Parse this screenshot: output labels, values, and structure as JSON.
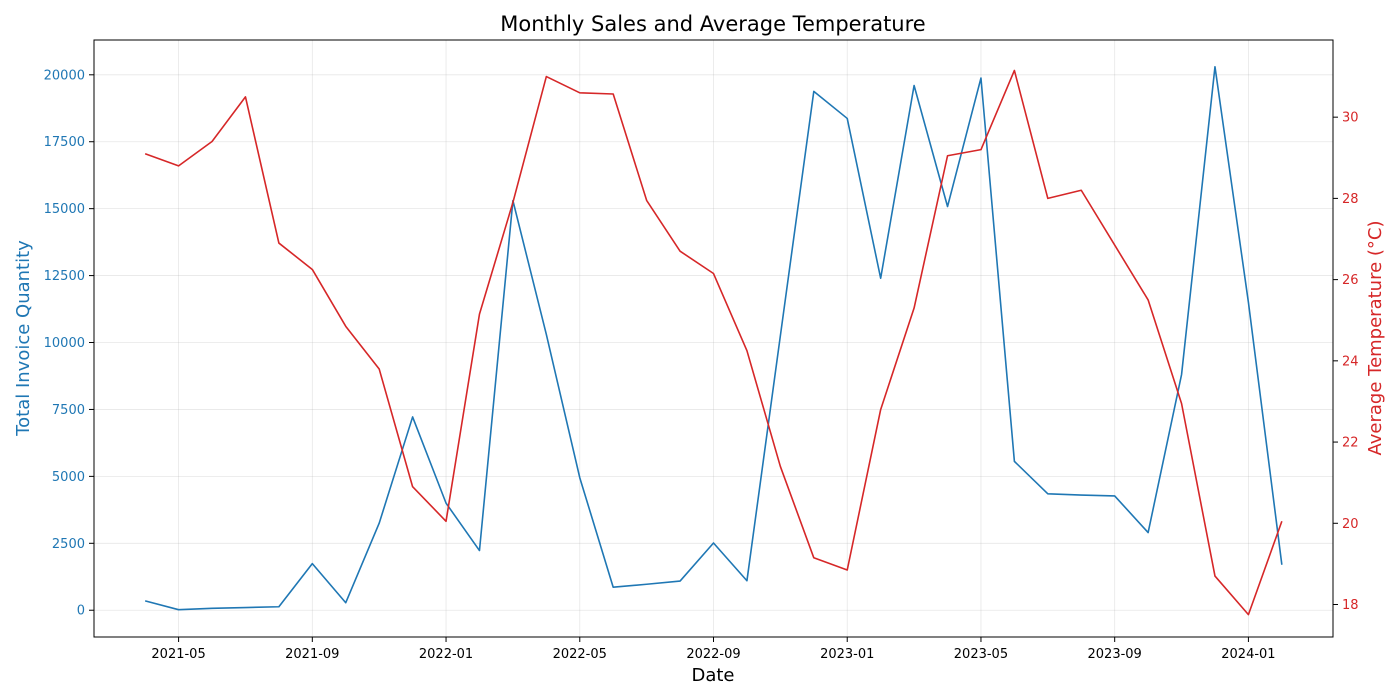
{
  "chart_data": {
    "type": "line",
    "title": "Monthly Sales and Average Temperature",
    "xlabel": "Date",
    "y_left_label": "Total Invoice Quantity",
    "y_right_label": "Average Temperature (°C)",
    "x_ticks": [
      "2021-05",
      "2021-09",
      "2022-01",
      "2022-05",
      "2022-09",
      "2023-01",
      "2023-05",
      "2023-09",
      "2024-01"
    ],
    "y_left_ticks": [
      0,
      2500,
      5000,
      7500,
      10000,
      12500,
      15000,
      17500,
      20000
    ],
    "y_left_tick_labels": [
      "0",
      "2500",
      "5000",
      "7500",
      "10000",
      "12500",
      "15000",
      "17500",
      "20000"
    ],
    "y_right_ticks": [
      18,
      20,
      22,
      24,
      26,
      28,
      30
    ],
    "y_right_tick_labels": [
      "18",
      "20",
      "22",
      "24",
      "26",
      "28",
      "30"
    ],
    "y_left_lim": [
      -1000,
      21300
    ],
    "y_right_lim": [
      17.2,
      31.9
    ],
    "grid": true,
    "x": [
      "2021-04",
      "2021-05",
      "2021-06",
      "2021-07",
      "2021-08",
      "2021-09",
      "2021-10",
      "2021-11",
      "2021-12",
      "2022-01",
      "2022-02",
      "2022-03",
      "2022-04",
      "2022-05",
      "2022-06",
      "2022-07",
      "2022-08",
      "2022-09",
      "2022-10",
      "2022-11",
      "2022-12",
      "2023-01",
      "2023-02",
      "2023-03",
      "2023-04",
      "2023-05",
      "2023-06",
      "2023-07",
      "2023-08",
      "2023-09",
      "2023-10",
      "2023-11",
      "2023-12",
      "2024-01",
      "2024-02"
    ],
    "series": [
      {
        "axis": "left",
        "color": "#1f77b4",
        "values": [
          350,
          20,
          70,
          100,
          130,
          1740,
          280,
          3250,
          7220,
          4000,
          2230,
          15300,
          10300,
          4950,
          860,
          970,
          1090,
          2510,
          1100,
          10250,
          19380,
          18370,
          12400,
          19600,
          15080,
          19880,
          5560,
          4350,
          4300,
          4270,
          2900,
          8800,
          20300,
          11500,
          1700
        ]
      },
      {
        "axis": "right",
        "color": "#d62728",
        "values": [
          29.1,
          28.8,
          29.4,
          30.5,
          26.9,
          26.25,
          24.85,
          23.8,
          20.9,
          20.05,
          25.15,
          27.9,
          31.0,
          30.6,
          30.57,
          27.95,
          26.7,
          26.15,
          24.25,
          21.4,
          19.15,
          18.85,
          22.8,
          25.3,
          29.05,
          29.2,
          31.15,
          28.0,
          28.2,
          26.85,
          25.5,
          22.95,
          18.7,
          17.75,
          20.05
        ]
      }
    ]
  }
}
